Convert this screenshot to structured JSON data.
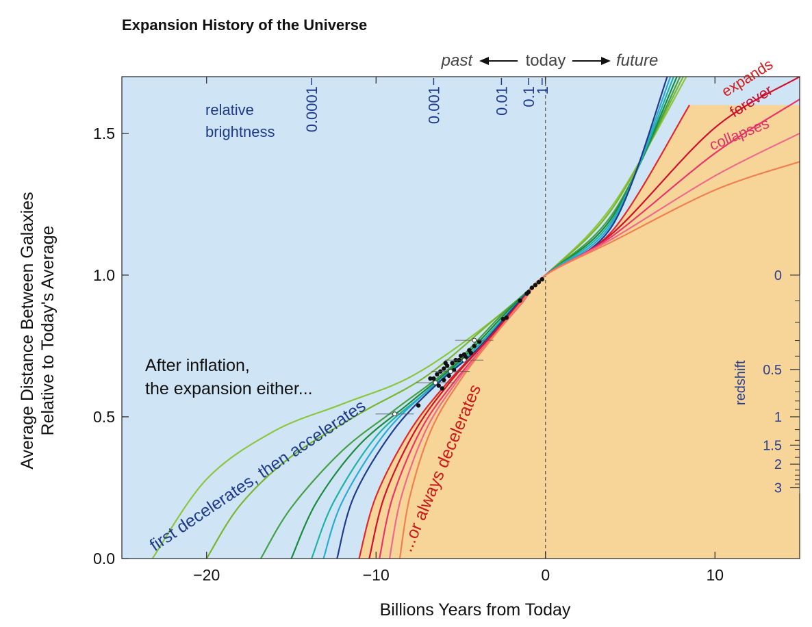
{
  "chart_data": {
    "type": "line",
    "title": "Expansion History of the Universe",
    "xlabel": "Billions Years from Today",
    "ylabel_line1": "Average Distance Between Galaxies",
    "ylabel_line2": "Relative to Today's Average",
    "xlim": [
      -25,
      15
    ],
    "ylim": [
      0,
      1.7
    ],
    "xticks": [
      {
        "v": -20,
        "label": "−20"
      },
      {
        "v": -10,
        "label": "−10"
      },
      {
        "v": 0,
        "label": "0"
      },
      {
        "v": 10,
        "label": "10"
      }
    ],
    "yticks": [
      {
        "v": 0.0,
        "label": "0.0"
      },
      {
        "v": 0.5,
        "label": "0.5"
      },
      {
        "v": 1.0,
        "label": "1.0"
      },
      {
        "v": 1.5,
        "label": "1.5"
      }
    ],
    "timeline": {
      "past": "past",
      "today": "today",
      "future": "future"
    },
    "relative_brightness": {
      "label_line1": "relative",
      "label_line2": "brightness",
      "ticks": [
        {
          "x": -13.8,
          "label": "0.0001"
        },
        {
          "x": -6.6,
          "label": "0.001"
        },
        {
          "x": -2.6,
          "label": "0.01"
        },
        {
          "x": -1.0,
          "label": "0.1"
        },
        {
          "x": -0.2,
          "label": "1"
        }
      ]
    },
    "redshift": {
      "label": "redshift",
      "ticks": [
        {
          "y": 1.0,
          "label": "0"
        },
        {
          "y": 0.667,
          "label": "0.5"
        },
        {
          "y": 0.5,
          "label": "1"
        },
        {
          "y": 0.4,
          "label": "1.5"
        },
        {
          "y": 0.333,
          "label": "2"
        },
        {
          "y": 0.25,
          "label": "3"
        }
      ],
      "minor_y": [
        0.909,
        0.833,
        0.769,
        0.714,
        0.625,
        0.588,
        0.556,
        0.526,
        0.455,
        0.417,
        0.385,
        0.357,
        0.312,
        0.294,
        0.278,
        0.263
      ]
    },
    "annotations": {
      "inflation_line1": "After inflation,",
      "inflation_line2": "the expansion either...",
      "accelerates": "first decelerates, then accelerates",
      "decelerates": "...or always decelerates",
      "expands": "expands",
      "forever": "forever",
      "collapses": "collapses"
    },
    "series": [
      {
        "color": "#8cc63f",
        "values": [
          [
            -23.2,
            0.0
          ],
          [
            -20,
            0.28
          ],
          [
            -16,
            0.45
          ],
          [
            -12,
            0.545
          ],
          [
            -8,
            0.64
          ],
          [
            -4,
            0.8
          ],
          [
            0,
            1.0
          ],
          [
            4,
            1.25
          ],
          [
            8.5,
            1.72
          ]
        ]
      },
      {
        "color": "#7ab52f",
        "values": [
          [
            -20.0,
            0.0
          ],
          [
            -18,
            0.19
          ],
          [
            -15,
            0.36
          ],
          [
            -11,
            0.51
          ],
          [
            -7,
            0.645
          ],
          [
            -3,
            0.845
          ],
          [
            0,
            1.0
          ],
          [
            4,
            1.24
          ],
          [
            8.3,
            1.72
          ]
        ]
      },
      {
        "color": "#43a047",
        "values": [
          [
            -16.8,
            0.0
          ],
          [
            -15,
            0.18
          ],
          [
            -12,
            0.38
          ],
          [
            -9,
            0.52
          ],
          [
            -5.5,
            0.68
          ],
          [
            -2.5,
            0.865
          ],
          [
            0,
            1.0
          ],
          [
            4,
            1.22
          ],
          [
            8.1,
            1.72
          ]
        ]
      },
      {
        "color": "#1a8a3e",
        "values": [
          [
            -15.0,
            0.0
          ],
          [
            -13.5,
            0.2
          ],
          [
            -11,
            0.4
          ],
          [
            -8,
            0.55
          ],
          [
            -5,
            0.7
          ],
          [
            -2.2,
            0.875
          ],
          [
            0,
            1.0
          ],
          [
            4,
            1.21
          ],
          [
            7.9,
            1.72
          ]
        ]
      },
      {
        "color": "#1fb2a6",
        "values": [
          [
            -13.8,
            0.0
          ],
          [
            -12.5,
            0.2
          ],
          [
            -10,
            0.43
          ],
          [
            -7.2,
            0.58
          ],
          [
            -4.5,
            0.72
          ],
          [
            -2,
            0.88
          ],
          [
            0,
            1.0
          ],
          [
            4,
            1.2
          ],
          [
            7.7,
            1.72
          ]
        ]
      },
      {
        "color": "#29a9d6",
        "values": [
          [
            -13.1,
            0.0
          ],
          [
            -12,
            0.2
          ],
          [
            -9.5,
            0.44
          ],
          [
            -6.8,
            0.6
          ],
          [
            -4.2,
            0.73
          ],
          [
            -1.9,
            0.885
          ],
          [
            0,
            1.0
          ],
          [
            4,
            1.19
          ],
          [
            7.5,
            1.72
          ]
        ]
      },
      {
        "color": "#1f3b8c",
        "values": [
          [
            -12.3,
            0.0
          ],
          [
            -11.3,
            0.22
          ],
          [
            -9,
            0.45
          ],
          [
            -6.5,
            0.61
          ],
          [
            -4,
            0.74
          ],
          [
            -1.8,
            0.89
          ],
          [
            0,
            1.0
          ],
          [
            4,
            1.18
          ],
          [
            7.3,
            1.72
          ]
        ]
      },
      {
        "color": "#e3262a",
        "values": [
          [
            -11.0,
            0.0
          ],
          [
            -10,
            0.22
          ],
          [
            -8,
            0.45
          ],
          [
            -5.8,
            0.62
          ],
          [
            -3.6,
            0.76
          ],
          [
            -1.6,
            0.895
          ],
          [
            0,
            1.0
          ],
          [
            4,
            1.16
          ],
          [
            8.5,
            1.6
          ]
        ]
      },
      {
        "color": "#d0102f",
        "values": [
          [
            -10.4,
            0.0
          ],
          [
            -9.5,
            0.22
          ],
          [
            -7.7,
            0.45
          ],
          [
            -5.6,
            0.625
          ],
          [
            -3.5,
            0.765
          ],
          [
            -1.6,
            0.897
          ],
          [
            0,
            1.0
          ],
          [
            4,
            1.15
          ],
          [
            10,
            1.52
          ],
          [
            15,
            1.7
          ]
        ]
      },
      {
        "color": "#e9356b",
        "values": [
          [
            -9.8,
            0.0
          ],
          [
            -9,
            0.22
          ],
          [
            -7.3,
            0.46
          ],
          [
            -5.3,
            0.63
          ],
          [
            -3.3,
            0.77
          ],
          [
            -1.5,
            0.9
          ],
          [
            0,
            1.0
          ],
          [
            4,
            1.14
          ],
          [
            10,
            1.43
          ],
          [
            15,
            1.62
          ]
        ]
      },
      {
        "color": "#ee6a8c",
        "values": [
          [
            -9.2,
            0.0
          ],
          [
            -8.5,
            0.22
          ],
          [
            -7,
            0.46
          ],
          [
            -5.1,
            0.635
          ],
          [
            -3.2,
            0.775
          ],
          [
            -1.4,
            0.9
          ],
          [
            0,
            1.0
          ],
          [
            4,
            1.13
          ],
          [
            10,
            1.35
          ],
          [
            15,
            1.5
          ]
        ]
      },
      {
        "color": "#f08050",
        "values": [
          [
            -8.6,
            0.0
          ],
          [
            -8.0,
            0.22
          ],
          [
            -6.7,
            0.46
          ],
          [
            -4.9,
            0.64
          ],
          [
            -3.1,
            0.78
          ],
          [
            -1.4,
            0.905
          ],
          [
            0,
            1.0
          ],
          [
            4,
            1.12
          ],
          [
            10,
            1.3
          ],
          [
            15,
            1.4
          ]
        ]
      }
    ],
    "data_points": [
      [
        -0.2,
        0.985
      ],
      [
        -0.4,
        0.975
      ],
      [
        -0.6,
        0.965
      ],
      [
        -0.8,
        0.955
      ],
      [
        -1.0,
        0.94
      ],
      [
        -1.1,
        0.935
      ],
      [
        -1.5,
        0.91
      ],
      [
        -2.3,
        0.85
      ],
      [
        -2.5,
        0.845
      ],
      [
        -3.9,
        0.765
      ],
      [
        -4.2,
        0.75
      ],
      [
        -4.5,
        0.735
      ],
      [
        -4.8,
        0.72
      ],
      [
        -5.0,
        0.715
      ],
      [
        -5.3,
        0.7
      ],
      [
        -5.5,
        0.69
      ],
      [
        -5.8,
        0.68
      ],
      [
        -6.0,
        0.67
      ],
      [
        -6.2,
        0.66
      ],
      [
        -6.4,
        0.65
      ],
      [
        -6.6,
        0.635
      ],
      [
        -6.0,
        0.63
      ],
      [
        -5.7,
        0.645
      ],
      [
        -5.4,
        0.665
      ],
      [
        -5.1,
        0.7
      ],
      [
        -4.7,
        0.71
      ],
      [
        -6.3,
        0.61
      ],
      [
        -6.1,
        0.6
      ],
      [
        -5.9,
        0.69
      ],
      [
        -6.8,
        0.635
      ],
      [
        -7.5,
        0.54
      ],
      [
        -4.4,
        0.725
      ]
    ],
    "open_points": [
      [
        -8.9,
        0.51
      ],
      [
        -6.5,
        0.62
      ],
      [
        -4.2,
        0.77
      ],
      [
        -4.8,
        0.7
      ],
      [
        -5.6,
        0.66
      ]
    ],
    "colors": {
      "accelerating_bg": "#cfe4f4",
      "decelerating_bg": "#f7d497",
      "axis_text": "#111111",
      "brightness_text": "#1e3a8a",
      "redshift_text": "#2a3f8f"
    }
  }
}
